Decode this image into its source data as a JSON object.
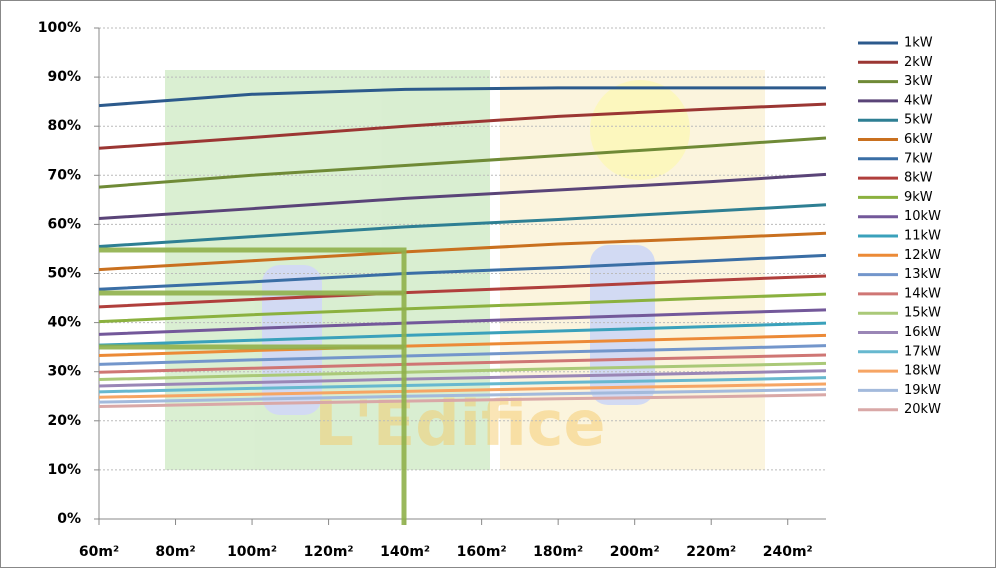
{
  "chart_data": {
    "type": "line",
    "watermark": "L'Edifice",
    "x": [
      60,
      100,
      140,
      180,
      220,
      250
    ],
    "xlim": [
      60,
      250
    ],
    "xticks": [
      {
        "value": 60,
        "label": "60m²"
      },
      {
        "value": 80,
        "label": "80m²"
      },
      {
        "value": 100,
        "label": "100m²"
      },
      {
        "value": 120,
        "label": "120m²"
      },
      {
        "value": 140,
        "label": "140m²"
      },
      {
        "value": 160,
        "label": "160m²"
      },
      {
        "value": 180,
        "label": "180m²"
      },
      {
        "value": 200,
        "label": "200m²"
      },
      {
        "value": 220,
        "label": "220m²"
      },
      {
        "value": 240,
        "label": "240m²"
      }
    ],
    "ylim": [
      0,
      100
    ],
    "yticks": [
      {
        "value": 0,
        "label": "0%"
      },
      {
        "value": 10,
        "label": "10%"
      },
      {
        "value": 20,
        "label": "20%"
      },
      {
        "value": 30,
        "label": "30%"
      },
      {
        "value": 40,
        "label": "40%"
      },
      {
        "value": 50,
        "label": "50%"
      },
      {
        "value": 60,
        "label": "60%"
      },
      {
        "value": 70,
        "label": "70%"
      },
      {
        "value": 80,
        "label": "80%"
      },
      {
        "value": 90,
        "label": "90%"
      },
      {
        "value": 100,
        "label": "100%"
      }
    ],
    "grid": true,
    "legend": "right",
    "series": [
      {
        "name": "1kW",
        "color": "#2c5a8c",
        "values": [
          84.2,
          86.5,
          87.5,
          87.8,
          87.8,
          87.8
        ]
      },
      {
        "name": "2kW",
        "color": "#9b3633",
        "values": [
          75.5,
          77.7,
          80,
          82,
          83.5,
          84.5
        ]
      },
      {
        "name": "3kW",
        "color": "#6f8a36",
        "values": [
          67.6,
          70,
          72,
          74,
          76,
          77.6
        ]
      },
      {
        "name": "4kW",
        "color": "#5a4478",
        "values": [
          61.2,
          63.2,
          65.3,
          67,
          68.7,
          70.2
        ]
      },
      {
        "name": "5kW",
        "color": "#2e7f93",
        "values": [
          55.5,
          57.5,
          59.5,
          61,
          62.7,
          64
        ]
      },
      {
        "name": "6kW",
        "color": "#c9701f",
        "values": [
          50.8,
          52.6,
          54.4,
          56,
          57.2,
          58.2
        ]
      },
      {
        "name": "7kW",
        "color": "#3a6ea5",
        "values": [
          46.8,
          48.3,
          50,
          51.2,
          52.6,
          53.7
        ]
      },
      {
        "name": "8kW",
        "color": "#b03f3c",
        "values": [
          43.2,
          44.7,
          46.1,
          47.3,
          48.6,
          49.5
        ]
      },
      {
        "name": "9kW",
        "color": "#8bb13f",
        "values": [
          40.2,
          41.6,
          42.8,
          43.9,
          45,
          45.8
        ]
      },
      {
        "name": "10kW",
        "color": "#73589a",
        "values": [
          37.6,
          38.8,
          39.9,
          40.9,
          41.9,
          42.6
        ]
      },
      {
        "name": "11kW",
        "color": "#3aa1bb",
        "values": [
          35.4,
          36.4,
          37.4,
          38.3,
          39.2,
          39.9
        ]
      },
      {
        "name": "12kW",
        "color": "#ec8a37",
        "values": [
          33.3,
          34.3,
          35.2,
          36,
          36.8,
          37.4
        ]
      },
      {
        "name": "13kW",
        "color": "#7396cb",
        "values": [
          31.5,
          32.4,
          33.2,
          34,
          34.7,
          35.3
        ]
      },
      {
        "name": "14kW",
        "color": "#cf7674",
        "values": [
          29.9,
          30.7,
          31.5,
          32.2,
          32.9,
          33.4
        ]
      },
      {
        "name": "15kW",
        "color": "#aac978",
        "values": [
          28.4,
          29.2,
          29.9,
          30.6,
          31.2,
          31.7
        ]
      },
      {
        "name": "16kW",
        "color": "#9a86b6",
        "values": [
          27.1,
          27.8,
          28.5,
          29.1,
          29.7,
          30.2
        ]
      },
      {
        "name": "17kW",
        "color": "#67b8cf",
        "values": [
          25.9,
          26.6,
          27.2,
          27.8,
          28.3,
          28.8
        ]
      },
      {
        "name": "18kW",
        "color": "#f6a564",
        "values": [
          24.8,
          25.4,
          26,
          26.6,
          27.1,
          27.5
        ]
      },
      {
        "name": "19kW",
        "color": "#a3badc",
        "values": [
          23.8,
          24.4,
          25,
          25.5,
          26,
          26.4
        ]
      },
      {
        "name": "20kW",
        "color": "#d9a8a7",
        "values": [
          22.9,
          23.5,
          24,
          24.5,
          24.9,
          25.3
        ]
      }
    ]
  }
}
